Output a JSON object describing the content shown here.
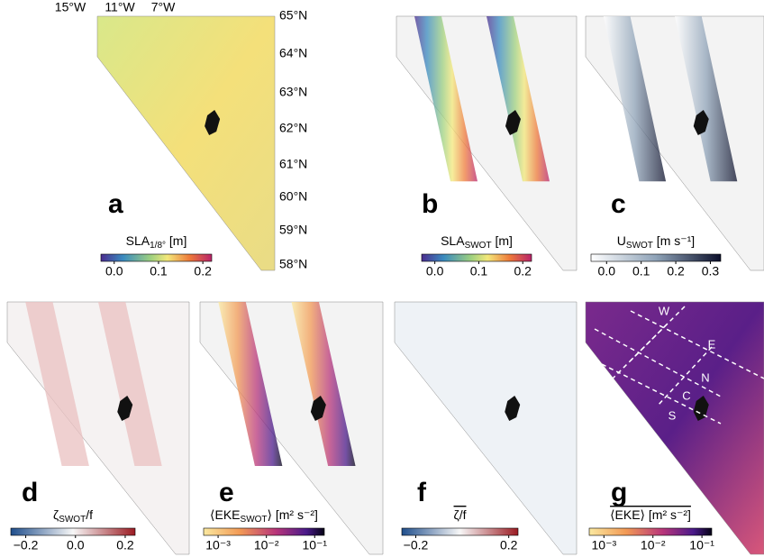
{
  "axes": {
    "longitude_labels": [
      "15°W",
      "11°W",
      "7°W"
    ],
    "latitude_labels": [
      "65°N",
      "64°N",
      "63°N",
      "62°N",
      "61°N",
      "60°N",
      "59°N",
      "58°N"
    ]
  },
  "panels": [
    {
      "letter": "a",
      "colorbar": {
        "main": "SLA",
        "sub": "1/8°",
        "unit": " [m]",
        "ticks": [
          "0.0",
          "0.1",
          "0.2"
        ]
      }
    },
    {
      "letter": "b",
      "colorbar": {
        "main": "SLA",
        "sub": "SWOT",
        "unit": " [m]",
        "ticks": [
          "0.0",
          "0.1",
          "0.2"
        ]
      }
    },
    {
      "letter": "c",
      "colorbar": {
        "main": "U",
        "sub": "SWOT",
        "unit": " [m s⁻¹]",
        "ticks": [
          "0.0",
          "0.1",
          "0.2",
          "0.3"
        ]
      }
    },
    {
      "letter": "d",
      "colorbar": {
        "main": "ζ",
        "sub": "SWOT",
        "unit": "/f",
        "ticks": [
          "−0.2",
          "0.0",
          "0.2"
        ]
      }
    },
    {
      "letter": "e",
      "colorbar": {
        "main": "⟨EKE",
        "sub": "SWOT",
        "unit": "⟩ [m² s⁻²]",
        "ticks": [
          "10⁻³",
          "10⁻²",
          "10⁻¹"
        ]
      }
    },
    {
      "letter": "f",
      "colorbar": {
        "main": "ζ/f",
        "ticks": [
          "−0.2",
          "0.2"
        ]
      }
    },
    {
      "letter": "g",
      "colorbar": {
        "main": "⟨EKE⟩ [m² s⁻²]",
        "ticks": [
          "10⁻³",
          "10⁻²",
          "10⁻¹"
        ]
      }
    }
  ],
  "box_labels": [
    "W",
    "E",
    "N",
    "C",
    "S"
  ]
}
